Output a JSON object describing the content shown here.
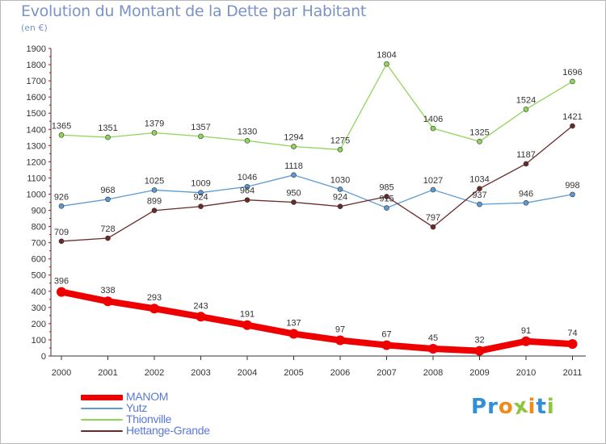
{
  "title": "Evolution du Montant de la Dette par Habitant",
  "subtitle": "(en €)",
  "logo": {
    "text": "Proxiti",
    "letters": [
      "P",
      "r",
      "o",
      "x",
      "i",
      "t",
      "i"
    ],
    "colors": [
      "#2f8fd8",
      "#2f8fd8",
      "#f08a1a",
      "#8cc63f",
      "#f08a1a",
      "#2f8fd8",
      "#8cc63f"
    ]
  },
  "chart_data": {
    "type": "line",
    "x": [
      "2000",
      "2001",
      "2002",
      "2003",
      "2004",
      "2005",
      "2006",
      "2007",
      "2008",
      "2009",
      "2010",
      "2011"
    ],
    "ylim": [
      0,
      1900
    ],
    "yticks": [
      0,
      100,
      200,
      300,
      400,
      500,
      600,
      700,
      800,
      900,
      1000,
      1100,
      1200,
      1300,
      1400,
      1500,
      1600,
      1700,
      1800,
      1900
    ],
    "grid": false,
    "legend_position": "bottom-left",
    "series": [
      {
        "name": "MANOM",
        "color": "#ee0000",
        "values": [
          396,
          338,
          293,
          243,
          191,
          137,
          97,
          67,
          45,
          32,
          91,
          74
        ],
        "emphasis": true
      },
      {
        "name": "Yutz",
        "color": "#5b9bd5",
        "values": [
          926,
          968,
          1025,
          1009,
          1046,
          1118,
          1030,
          915,
          1027,
          937,
          946,
          998
        ]
      },
      {
        "name": "Thionville",
        "color": "#8ed65a",
        "values": [
          1365,
          1351,
          1379,
          1357,
          1330,
          1294,
          1275,
          1804,
          1406,
          1325,
          1524,
          1696
        ]
      },
      {
        "name": "Hettange-Grande",
        "color": "#6b2a2a",
        "values": [
          709,
          728,
          899,
          924,
          964,
          950,
          924,
          985,
          797,
          1034,
          1187,
          1421
        ]
      }
    ]
  }
}
